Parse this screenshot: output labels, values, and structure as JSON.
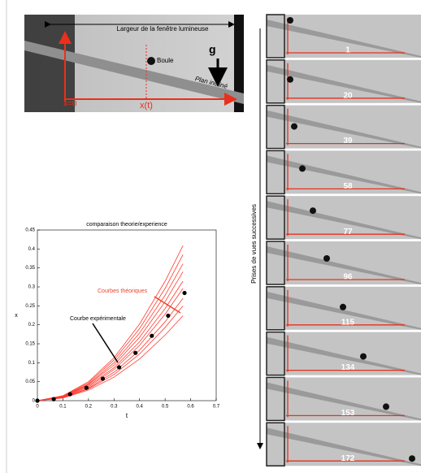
{
  "photo": {
    "width_label": "Largeur de la fenêtre lumineuse",
    "ball": "Boule",
    "gravity": "g",
    "plane": "Plan incliné",
    "origin": "x=0",
    "position": "x(t)"
  },
  "chart_data": {
    "type": "line",
    "title": "comparaison theorie/experience",
    "x_label": "t",
    "y_label": "x",
    "xlim": [
      0,
      0.7
    ],
    "xticks": [
      0,
      0.1,
      0.2,
      0.3,
      0.4,
      0.5,
      0.6,
      0.7
    ],
    "ylim": [
      0,
      0.45
    ],
    "yticks": [
      0,
      0.05,
      0.1,
      0.15,
      0.2,
      0.25,
      0.3,
      0.35,
      0.4,
      0.45
    ],
    "series": [
      {
        "color": "#ff3b2f",
        "x": [
          0,
          0.1,
          0.2,
          0.3,
          0.4,
          0.5,
          0.57
        ],
        "values": [
          0,
          0.013,
          0.05,
          0.113,
          0.202,
          0.315,
          0.409
        ]
      },
      {
        "color": "#ff3b2f",
        "x": [
          0,
          0.1,
          0.2,
          0.3,
          0.4,
          0.5,
          0.57
        ],
        "values": [
          0,
          0.012,
          0.047,
          0.107,
          0.19,
          0.296,
          0.385
        ]
      },
      {
        "color": "#ff3b2f",
        "x": [
          0,
          0.1,
          0.2,
          0.3,
          0.4,
          0.5,
          0.57
        ],
        "values": [
          0,
          0.011,
          0.044,
          0.1,
          0.178,
          0.278,
          0.361
        ]
      },
      {
        "color": "#ff3b2f",
        "x": [
          0,
          0.1,
          0.2,
          0.3,
          0.4,
          0.5,
          0.57
        ],
        "values": [
          0,
          0.01,
          0.042,
          0.094,
          0.167,
          0.261,
          0.34
        ]
      },
      {
        "color": "#ff3b2f",
        "x": [
          0,
          0.1,
          0.2,
          0.3,
          0.4,
          0.5,
          0.57
        ],
        "values": [
          0,
          0.01,
          0.039,
          0.087,
          0.155,
          0.243,
          0.315
        ]
      },
      {
        "color": "#ff3b2f",
        "x": [
          0,
          0.1,
          0.2,
          0.3,
          0.4,
          0.5,
          0.57
        ],
        "values": [
          0,
          0.009,
          0.036,
          0.082,
          0.146,
          0.228,
          0.296
        ]
      },
      {
        "color": "#ff3b2f",
        "x": [
          0,
          0.1,
          0.2,
          0.3,
          0.4,
          0.5,
          0.57
        ],
        "values": [
          0,
          0.008,
          0.033,
          0.075,
          0.133,
          0.208,
          0.27
        ]
      },
      {
        "color": "#ff3b2f",
        "x": [
          0,
          0.1,
          0.2,
          0.3,
          0.4,
          0.5,
          0.57
        ],
        "values": [
          0,
          0.008,
          0.031,
          0.069,
          0.123,
          0.193,
          0.25
        ]
      },
      {
        "color": "#ff3b2f",
        "x": [
          0,
          0.1,
          0.2,
          0.3,
          0.4,
          0.5,
          0.57
        ],
        "values": [
          0,
          0.007,
          0.028,
          0.062,
          0.11,
          0.173,
          0.224
        ]
      },
      {
        "type": "scatter",
        "color": "#000000",
        "x": [
          0,
          0.064,
          0.128,
          0.192,
          0.256,
          0.32,
          0.384,
          0.448,
          0.512,
          0.576
        ],
        "values": [
          0,
          0.004,
          0.017,
          0.034,
          0.058,
          0.088,
          0.126,
          0.171,
          0.224,
          0.284
        ]
      }
    ],
    "annotations": [
      {
        "text": "Courbes théoriques",
        "color": "#e8452c"
      },
      {
        "text": "Courbe expérimentale",
        "color": "#000000"
      }
    ]
  },
  "frames": {
    "caption": "Prises de vues successives",
    "labels": [
      "1",
      "20",
      "39",
      "58",
      "77",
      "96",
      "115",
      "134",
      "153",
      "172"
    ]
  }
}
